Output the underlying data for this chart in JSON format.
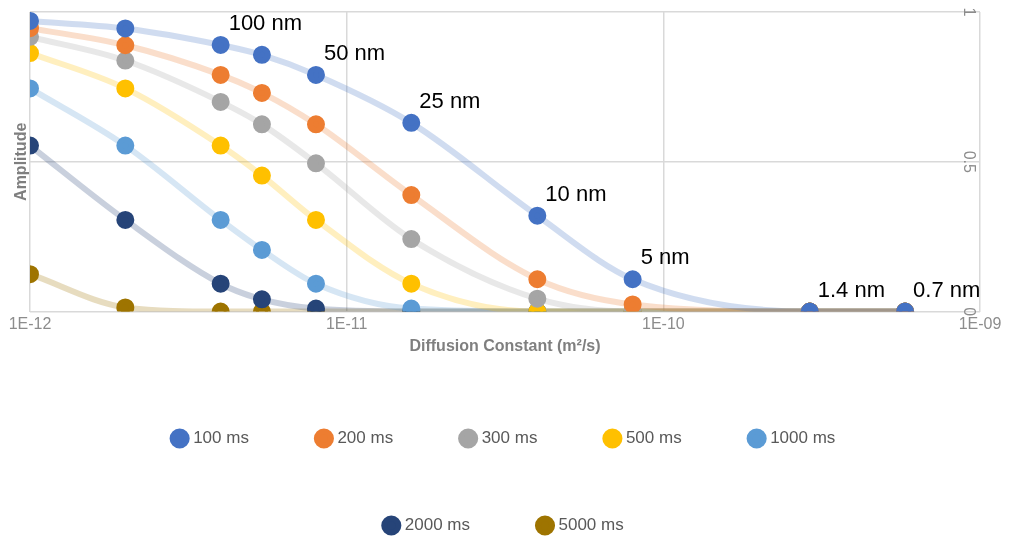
{
  "chart_data": {
    "type": "line",
    "xlabel": "Diffusion Constant (m²/s)",
    "ylabel": "Amplitude",
    "log": "x",
    "x": [
      1e-12,
      2e-12,
      4e-12,
      5.4e-12,
      8e-12,
      1.6e-11,
      4e-11,
      8e-11,
      2.9e-10,
      5.8e-10
    ],
    "xlim": [
      1e-12,
      1e-09
    ],
    "xticks": [
      {
        "value": 1e-12,
        "label": "1E-12"
      },
      {
        "value": 1e-11,
        "label": "1E-11"
      },
      {
        "value": 1e-10,
        "label": "1E-10"
      },
      {
        "value": 1e-09,
        "label": "1E-09"
      }
    ],
    "ylim": [
      0,
      1
    ],
    "yticks": [
      0,
      0.5,
      1
    ],
    "grid": true,
    "legend": "bottom",
    "marker": "circle",
    "line_style": "solid",
    "series": [
      {
        "name": "100 ms",
        "color": "#4472c4",
        "values": [
          0.97,
          0.945,
          0.89,
          0.857,
          0.79,
          0.63,
          0.32,
          0.108,
          0,
          0
        ]
      },
      {
        "name": "200 ms",
        "color": "#ed7d31",
        "values": [
          0.946,
          0.889,
          0.79,
          0.73,
          0.625,
          0.389,
          0.108,
          0.024,
          0,
          0
        ]
      },
      {
        "name": "300 ms",
        "color": "#a5a5a5",
        "values": [
          0.917,
          0.838,
          0.7,
          0.625,
          0.495,
          0.242,
          0.043,
          0,
          0,
          0
        ]
      },
      {
        "name": "500 ms",
        "color": "#ffc000",
        "values": [
          0.863,
          0.745,
          0.554,
          0.454,
          0.306,
          0.093,
          0,
          0,
          0,
          0
        ]
      },
      {
        "name": "1000 ms",
        "color": "#5b9bd5",
        "values": [
          0.745,
          0.554,
          0.306,
          0.206,
          0.093,
          0.01,
          0,
          0,
          0,
          0
        ]
      },
      {
        "name": "2000 ms",
        "color": "#264478",
        "values": [
          0.554,
          0.306,
          0.093,
          0.041,
          0.01,
          0,
          0,
          0,
          0,
          0
        ]
      },
      {
        "name": "5000 ms",
        "color": "#9e7400",
        "values": [
          0.125,
          0.014,
          0,
          0,
          0,
          0,
          0,
          0,
          0,
          0
        ]
      }
    ],
    "annotations": [
      {
        "text": "100 nm",
        "x": 4e-12,
        "y": 0.89
      },
      {
        "text": "50 nm",
        "x": 8e-12,
        "y": 0.79
      },
      {
        "text": "25 nm",
        "x": 1.6e-11,
        "y": 0.63
      },
      {
        "text": "10 nm",
        "x": 4e-11,
        "y": 0.32
      },
      {
        "text": "5 nm",
        "x": 8e-11,
        "y": 0.108
      },
      {
        "text": "1.4 nm",
        "x": 2.9e-10,
        "y": 0
      },
      {
        "text": "0.7 nm",
        "x": 5.8e-10,
        "y": 0
      }
    ]
  }
}
